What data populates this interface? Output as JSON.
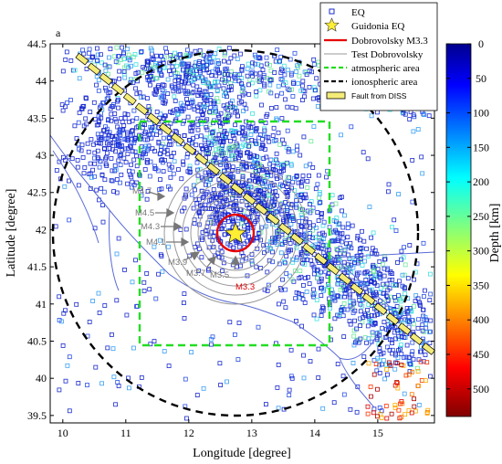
{
  "panel_label": "a",
  "x_axis": {
    "label": "Longitude [degree]",
    "ticks": [
      "10",
      "11",
      "12",
      "13",
      "14",
      "15"
    ]
  },
  "y_axis": {
    "label": "Latitude [degree]",
    "ticks": [
      "44.5",
      "44",
      "43.5",
      "43",
      "42.5",
      "42",
      "41.5",
      "41",
      "40.5",
      "40",
      "39.5"
    ]
  },
  "colorbar": {
    "label": "Depth [km]",
    "ticks": [
      "0",
      "50",
      "100",
      "150",
      "200",
      "250",
      "300",
      "350",
      "400",
      "450",
      "500"
    ]
  },
  "legend": {
    "eq": "EQ",
    "guidonia": "Guidonia EQ",
    "dobrovolsky": "Dobrovolsky M3.3",
    "test": "Test Dobrovolsky",
    "atmospheric": "atmospheric area",
    "ionospheric": "ionospheric area",
    "fault": "Fault from DISS"
  },
  "test_circles": [
    "M4.7",
    "M4.5",
    "M4.3",
    "M4.1",
    "M3.9",
    "M3.7",
    "M3.5"
  ],
  "red_circle_label": "M3.3",
  "colors": {
    "eq_blue": "#1a2bd0",
    "guidonia": "#ffee33",
    "dobrovolsky": "#e60000",
    "test": "#999999",
    "atmospheric": "#22dd22",
    "ionospheric": "#000000",
    "fault": "#f4ec78",
    "coast": "#5a6bd6"
  }
}
